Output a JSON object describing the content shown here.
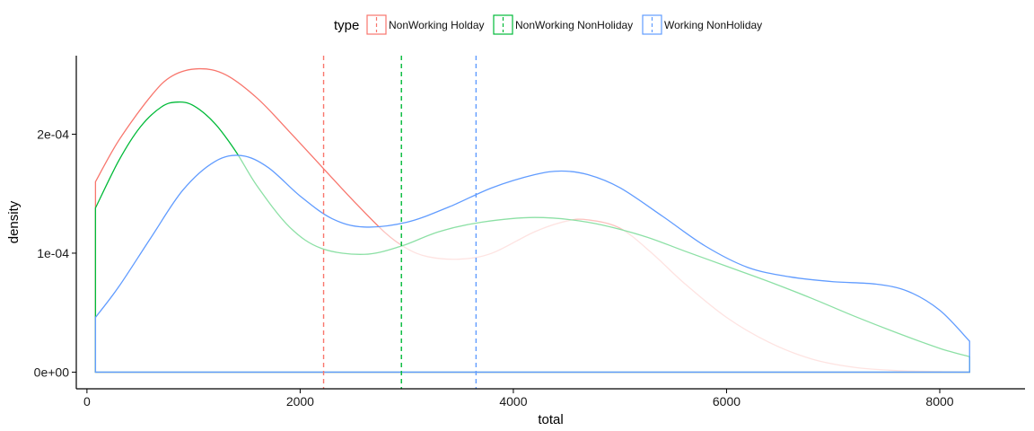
{
  "chart_data": {
    "type": "area",
    "xlabel": "total",
    "ylabel": "density",
    "xlim": [
      -100,
      8800
    ],
    "ylim": [
      -1.4e-05,
      0.000266
    ],
    "x_ticks": [
      0,
      2000,
      4000,
      6000,
      8000
    ],
    "x_tick_labels": [
      "0",
      "2000",
      "4000",
      "6000",
      "8000"
    ],
    "y_ticks": [
      0,
      0.0001,
      0.0002
    ],
    "y_tick_labels": [
      "0e+00",
      "1e-04",
      "2e-04"
    ],
    "grid": false,
    "legend": {
      "title": "type",
      "position": "top",
      "entries": [
        "NonWorking Holday",
        "NonWorking NonHoliday",
        "Working NonHoliday"
      ]
    },
    "series": [
      {
        "name": "NonWorking Holday",
        "color": "#F8766D",
        "mean": 2220,
        "x": [
          80,
          300,
          600,
          800,
          1050,
          1300,
          1600,
          1900,
          2220,
          2500,
          2800,
          3000,
          3200,
          3500,
          3800,
          4200,
          4500,
          4700,
          5000,
          5300,
          5600,
          6000,
          6400,
          6800,
          7200,
          7600,
          8000,
          8280
        ],
        "y": [
          0.00016,
          0.000195,
          0.000232,
          0.000249,
          0.000255,
          0.00025,
          0.00023,
          0.000202,
          0.000171,
          0.000144,
          0.000117,
          0.000104,
          9.7e-05,
          9.5e-05,
          0.0001,
          0.000118,
          0.000127,
          0.000128,
          0.000121,
          0.0001,
          7.5e-05,
          4.6e-05,
          2.5e-05,
          1.1e-05,
          4e-06,
          1.3e-06,
          5e-07,
          2e-07
        ]
      },
      {
        "name": "NonWorking NonHoliday",
        "color": "#00BA38",
        "mean": 2950,
        "x": [
          80,
          300,
          500,
          700,
          850,
          1000,
          1200,
          1400,
          1600,
          1900,
          2200,
          2600,
          2950,
          3300,
          3700,
          4200,
          4700,
          5200,
          5600,
          6000,
          6400,
          6800,
          7200,
          7600,
          8000,
          8280
        ],
        "y": [
          0.000138,
          0.000178,
          0.000206,
          0.000223,
          0.000227,
          0.000224,
          0.000209,
          0.000185,
          0.000156,
          0.000122,
          0.000104,
          9.9e-05,
          0.000106,
          0.000118,
          0.000126,
          0.00013,
          0.000126,
          0.000115,
          0.000102,
          8.9e-05,
          7.6e-05,
          6.2e-05,
          4.7e-05,
          3.3e-05,
          2e-05,
          1.3e-05
        ]
      },
      {
        "name": "Working NonHoliday",
        "color": "#619CFF",
        "mean": 3650,
        "x": [
          80,
          300,
          600,
          900,
          1200,
          1450,
          1700,
          2000,
          2300,
          2600,
          3000,
          3400,
          3800,
          4200,
          4450,
          4700,
          5000,
          5400,
          5800,
          6200,
          6600,
          7000,
          7400,
          7700,
          8000,
          8280
        ],
        "y": [
          4.6e-05,
          7.2e-05,
          0.000113,
          0.000153,
          0.000177,
          0.000182,
          0.000172,
          0.000148,
          0.000129,
          0.000122,
          0.000126,
          0.000139,
          0.000155,
          0.000166,
          0.000169,
          0.000166,
          0.000155,
          0.000131,
          0.000106,
          8.8e-05,
          8e-05,
          7.6e-05,
          7.4e-05,
          6.8e-05,
          5.2e-05,
          2.6e-05
        ]
      }
    ]
  }
}
